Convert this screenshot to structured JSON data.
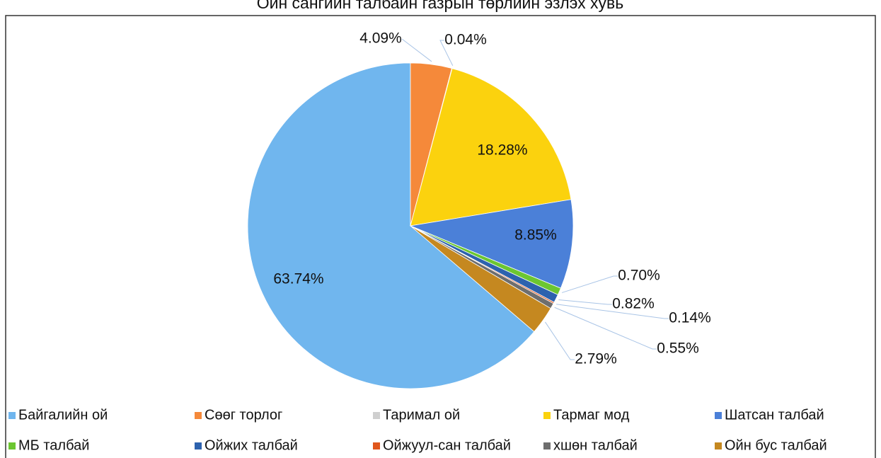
{
  "chart_data": {
    "type": "pie",
    "title": "Ойн сангийн талбайн газрын төрлийн эзлэх хувь",
    "categories": [
      "Байгалийн ой",
      "Сөөг торлог",
      "Таримал ой",
      "Тармаг мод",
      "Шатсан талбай",
      "МБ талбай",
      "Ойжих талбай",
      "Ойжуул-сан талбай",
      "хшөн талбай",
      "Ойн бус талбай"
    ],
    "values": [
      63.74,
      4.09,
      0.04,
      18.28,
      8.85,
      0.7,
      0.82,
      0.14,
      0.55,
      2.79
    ],
    "value_labels": [
      "63.74%",
      "4.09%",
      "0.04%",
      "18.28%",
      "8.85%",
      "0.70%",
      "0.82%",
      "0.14%",
      "0.55%",
      "2.79%"
    ],
    "colors": [
      "#70b6ee",
      "#f5893a",
      "#cfcfcf",
      "#fbd20e",
      "#4b80d8",
      "#6cc631",
      "#2d62ae",
      "#e0561c",
      "#6e6e6e",
      "#c58820"
    ],
    "legend": "bottom"
  }
}
